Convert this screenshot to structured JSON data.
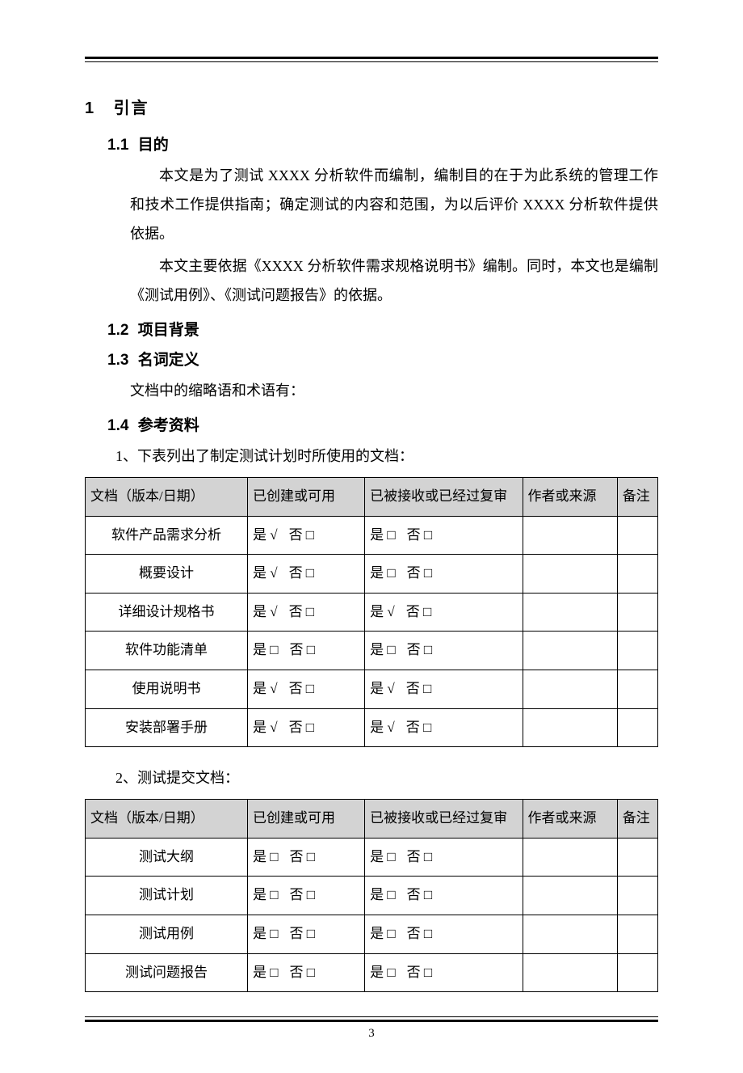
{
  "page_number": "3",
  "h1": {
    "num": "1",
    "title": "引言"
  },
  "sections": {
    "s1_1": {
      "num": "1.1",
      "title": "目的"
    },
    "s1_2": {
      "num": "1.2",
      "title": "项目背景"
    },
    "s1_3": {
      "num": "1.3",
      "title": "名词定义"
    },
    "s1_4": {
      "num": "1.4",
      "title": "参考资料"
    }
  },
  "paras": {
    "p1": "本文是为了测试 XXXX 分析软件而编制，编制目的在于为此系统的管理工作和技术工作提供指南；确定测试的内容和范围，为以后评价 XXXX 分析软件提供依据。",
    "p2": "本文主要依据《XXXX 分析软件需求规格说明书》编制。同时，本文也是编制《测试用例》、《测试问题报告》的依据。",
    "p3": "文档中的缩略语和术语有：",
    "list1": "1、下表列出了制定测试计划时所使用的文档：",
    "list2": "2、测试提交文档："
  },
  "marks": {
    "check": "√",
    "box": "□",
    "yes": "是",
    "no": "否"
  },
  "table_headers": {
    "doc": "文档（版本/日期）",
    "avail": "已创建或可用",
    "recv": "已被接收或已经过复审",
    "src": "作者或来源",
    "note": "备注"
  },
  "table1": {
    "rows": [
      {
        "doc": "软件产品需求分析",
        "avail_yes": "check",
        "avail_no": "box",
        "recv_yes": "box",
        "recv_no": "box"
      },
      {
        "doc": "概要设计",
        "avail_yes": "check",
        "avail_no": "box",
        "recv_yes": "box",
        "recv_no": "box"
      },
      {
        "doc": "详细设计规格书",
        "avail_yes": "check",
        "avail_no": "box",
        "recv_yes": "check",
        "recv_no": "box"
      },
      {
        "doc": "软件功能清单",
        "avail_yes": "box",
        "avail_no": "box",
        "recv_yes": "box",
        "recv_no": "box"
      },
      {
        "doc": "使用说明书",
        "avail_yes": "check",
        "avail_no": "box",
        "recv_yes": "check",
        "recv_no": "box"
      },
      {
        "doc": "安装部署手册",
        "avail_yes": "check",
        "avail_no": "box",
        "recv_yes": "check",
        "recv_no": "box"
      }
    ]
  },
  "table2": {
    "rows": [
      {
        "doc": "测试大纲",
        "avail_yes": "box",
        "avail_no": "box",
        "recv_yes": "box",
        "recv_no": "box"
      },
      {
        "doc": "测试计划",
        "avail_yes": "box",
        "avail_no": "box",
        "recv_yes": "box",
        "recv_no": "box"
      },
      {
        "doc": "测试用例",
        "avail_yes": "box",
        "avail_no": "box",
        "recv_yes": "box",
        "recv_no": "box"
      },
      {
        "doc": "测试问题报告",
        "avail_yes": "box",
        "avail_no": "box",
        "recv_yes": "box",
        "recv_no": "box"
      }
    ]
  }
}
